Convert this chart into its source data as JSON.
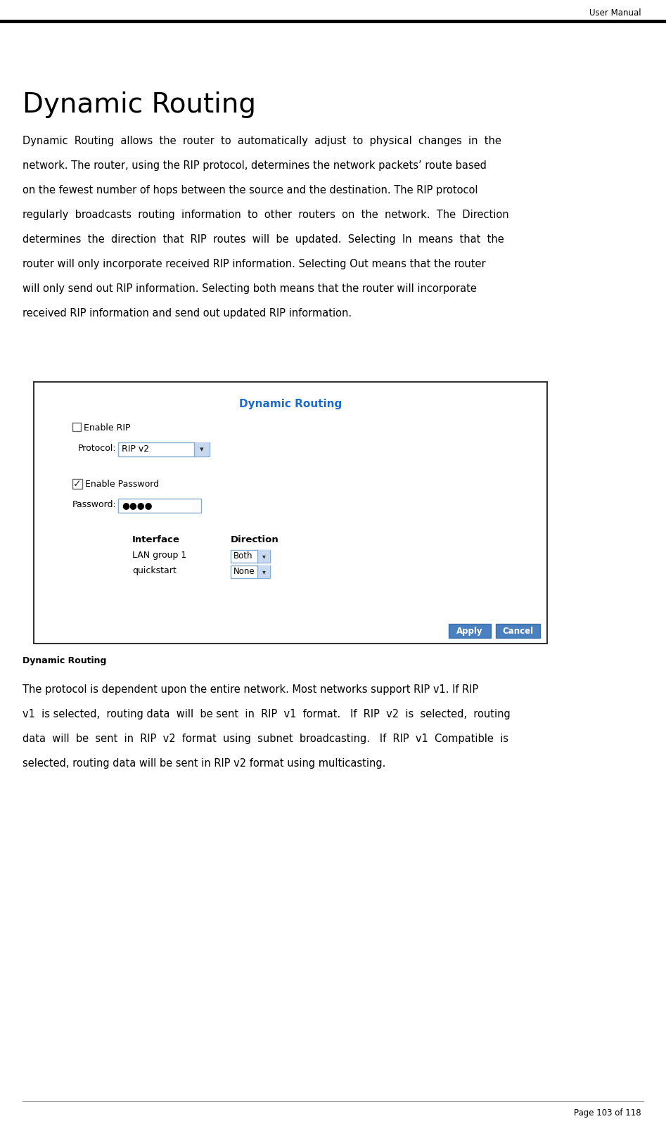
{
  "page_header": "User Manual",
  "page_footer": "Page 103 of 118",
  "section_title": "Dynamic Routing",
  "body_lines_1": [
    "Dynamic  Routing  allows  the  router  to  automatically  adjust  to  physical  changes  in  the",
    "network. The router, using the RIP protocol, determines the network packets’ route based",
    "on the fewest number of hops between the source and the destination. The RIP protocol",
    "regularly  broadcasts  routing  information  to  other  routers  on  the  network.  The  Direction",
    "determines  the  direction  that  RIP  routes  will  be  updated.  Selecting  In  means  that  the",
    "router will only incorporate received RIP information. Selecting Out means that the router",
    "will only send out RIP information. Selecting both means that the router will incorporate",
    "received RIP information and send out updated RIP information."
  ],
  "ui_box_title": "Dynamic Routing",
  "ui_box_title_color": "#1a6bcc",
  "checkbox_enable_rip_label": "Enable RIP",
  "protocol_label": "Protocol:",
  "protocol_value": "RIP v2",
  "checkbox_enable_password_label": "Enable Password",
  "password_label": "Password:",
  "password_dots": "●●●●",
  "table_interface_header": "Interface",
  "table_direction_header": "Direction",
  "table_row1_interface": "LAN group 1",
  "table_row1_direction": "Both",
  "table_row2_interface": "quickstart",
  "table_row2_direction": "None",
  "apply_button": "Apply",
  "cancel_button": "Cancel",
  "caption_text": "Dynamic Routing",
  "body_lines_2": [
    "The protocol is dependent upon the entire network. Most networks support RIP v1. If RIP",
    "v1  is selected,  routing data  will  be sent  in  RIP  v1  format.   If  RIP  v2  is  selected,  routing",
    "data  will  be  sent  in  RIP  v2  format  using  subnet  broadcasting.   If  RIP  v1  Compatible  is",
    "selected, routing data will be sent in RIP v2 format using multicasting."
  ],
  "bg_color": "#ffffff",
  "text_color": "#000000",
  "header_line_color": "#000000",
  "footer_line_color": "#888888",
  "input_border_color": "#8aaccc",
  "input_bg_color": "#ffffff",
  "dropdown_bg_color": "#c8d8ee",
  "button_bg_color": "#4a7fc0",
  "button_text_color": "#ffffff",
  "box_bg_color": "#f0f4f8"
}
